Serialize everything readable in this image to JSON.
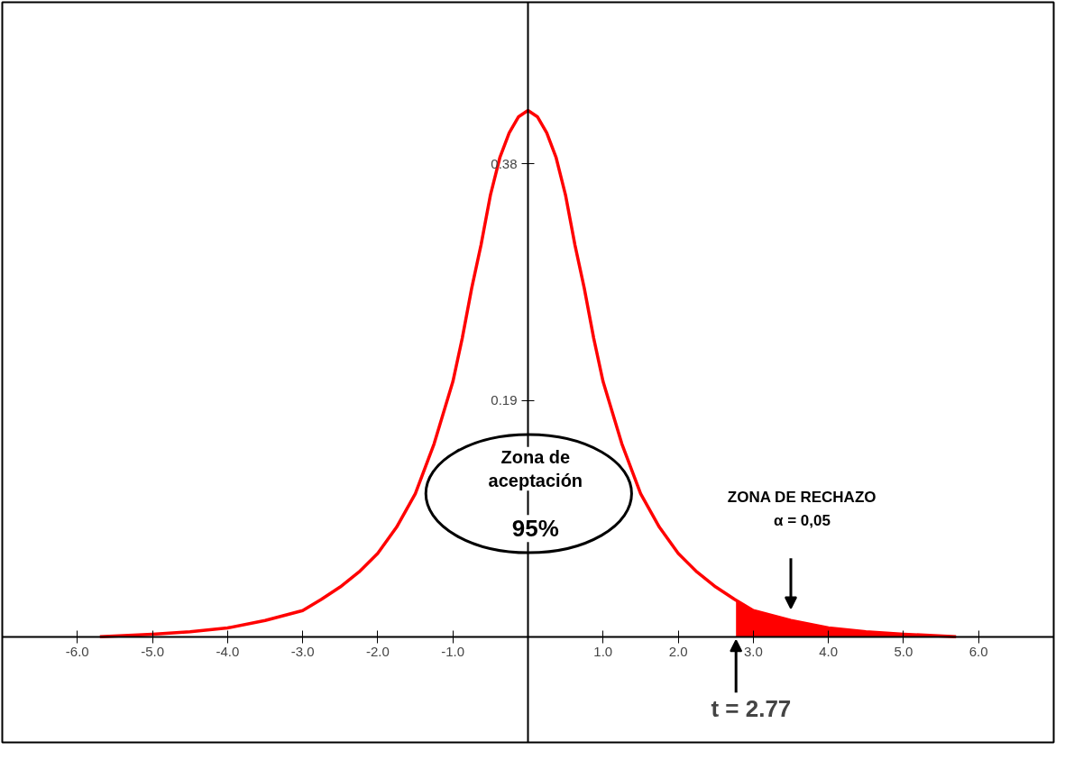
{
  "chart_data": {
    "type": "line",
    "x": [
      -5.7,
      -5,
      -4.5,
      -4,
      -3.5,
      -3,
      -2.75,
      -2.5,
      -2.25,
      -2,
      -1.75,
      -1.5,
      -1.25,
      -1,
      -0.875,
      -0.75,
      -0.625,
      -0.5,
      -0.375,
      -0.25,
      -0.125,
      0,
      0.125,
      0.25,
      0.375,
      0.5,
      0.625,
      0.75,
      0.875,
      1,
      1.25,
      1.5,
      1.75,
      2,
      2.25,
      2.5,
      2.75,
      3,
      3.5,
      4,
      4.5,
      5,
      5.7
    ],
    "series": [
      {
        "color": "#ff0000",
        "values": [
          0,
          0.002,
          0.004,
          0.007,
          0.013,
          0.021,
          0.03,
          0.04,
          0.052,
          0.067,
          0.088,
          0.115,
          0.155,
          0.205,
          0.24,
          0.28,
          0.315,
          0.355,
          0.385,
          0.405,
          0.418,
          0.423,
          0.418,
          0.405,
          0.385,
          0.355,
          0.315,
          0.28,
          0.24,
          0.205,
          0.155,
          0.115,
          0.088,
          0.067,
          0.052,
          0.04,
          0.03,
          0.021,
          0.013,
          0.007,
          0.004,
          0.002,
          0
        ]
      },
      {
        "type": "area",
        "color": "#ff0000",
        "x": [
          2.77,
          3,
          3.5,
          4,
          4.5,
          5,
          5.7
        ],
        "values": [
          0.029,
          0.021,
          0.013,
          0.007,
          0.004,
          0.002,
          0
        ]
      }
    ],
    "xlim": [
      -7,
      7
    ],
    "ylim": [
      -0.085,
      0.51
    ],
    "xticks": [
      {
        "value": -6,
        "label": "-6.0"
      },
      {
        "value": -5,
        "label": "-5.0"
      },
      {
        "value": -4,
        "label": "-4.0"
      },
      {
        "value": -3,
        "label": "-3.0"
      },
      {
        "value": -2,
        "label": "-2.0"
      },
      {
        "value": -1,
        "label": "-1.0"
      },
      {
        "value": 1,
        "label": "1.0"
      },
      {
        "value": 2,
        "label": "2.0"
      },
      {
        "value": 3,
        "label": "3.0"
      },
      {
        "value": 4,
        "label": "4.0"
      },
      {
        "value": 5,
        "label": "5.0"
      },
      {
        "value": 6,
        "label": "6.0"
      }
    ],
    "yticks": [
      0.19,
      0.38
    ],
    "grid": false,
    "annotations": [
      "Zona de aceptación",
      "95%",
      "ZONA DE RECHAZO",
      "α = 0,05",
      {
        "text": "t = 2.77",
        "x": 2.77,
        "y": 0
      }
    ]
  }
}
